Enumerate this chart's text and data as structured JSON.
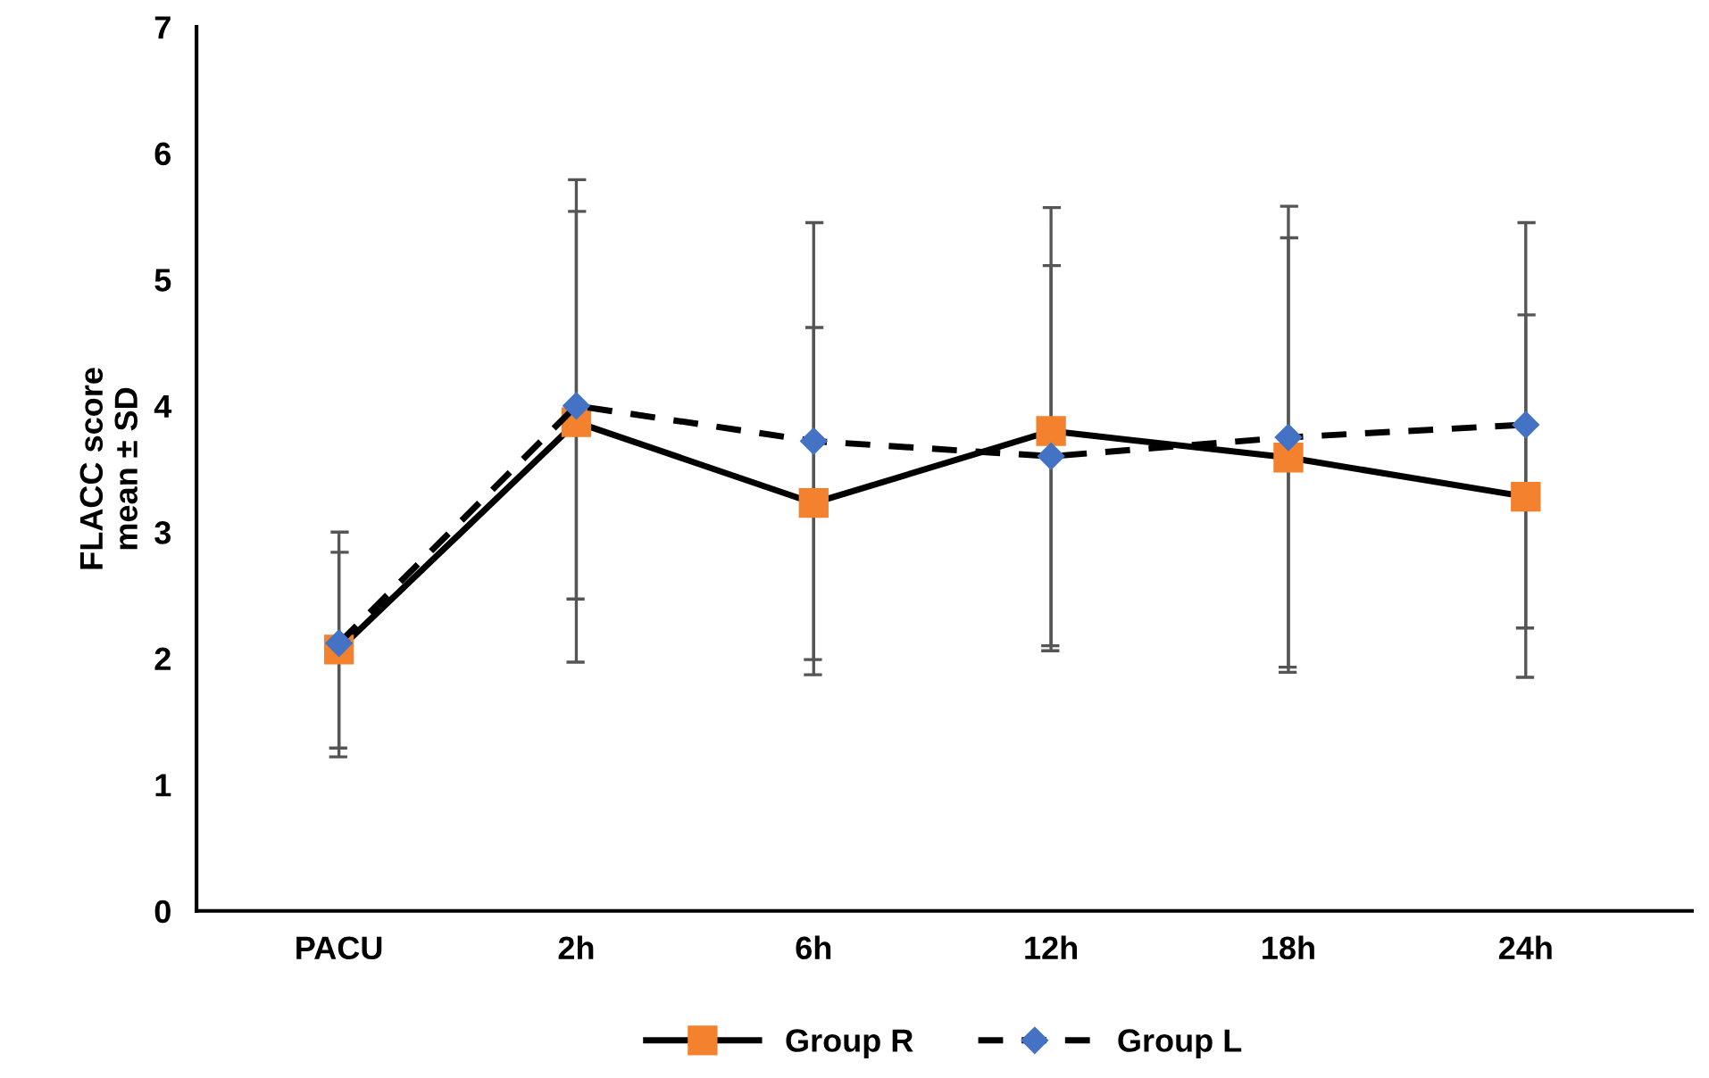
{
  "chart_data": {
    "type": "line",
    "ylabel": "FLACC score\nmean ± SD",
    "categories": [
      "PACU",
      "2h",
      "6h",
      "12h",
      "18h",
      "24h"
    ],
    "series": [
      {
        "name": "Group R",
        "color": "#f4812e",
        "marker": "square",
        "line_style": "solid",
        "values": [
          2.07,
          3.87,
          3.23,
          3.8,
          3.59,
          3.28
        ],
        "errors": [
          [
            1.29,
            2.84
          ],
          [
            1.97,
            5.79
          ],
          [
            1.87,
            4.62
          ],
          [
            2.06,
            5.57
          ],
          [
            1.89,
            5.33
          ],
          [
            1.85,
            4.72
          ]
        ]
      },
      {
        "name": "Group L",
        "color": "#4472c4",
        "marker": "diamond",
        "line_style": "dashed",
        "values": [
          2.12,
          4.0,
          3.72,
          3.6,
          3.75,
          3.85
        ],
        "errors": [
          [
            1.22,
            3.0
          ],
          [
            2.47,
            5.54
          ],
          [
            1.99,
            5.45
          ],
          [
            2.1,
            5.11
          ],
          [
            1.93,
            5.58
          ],
          [
            2.24,
            5.45
          ]
        ]
      }
    ],
    "ylim": [
      0,
      7
    ],
    "yticks": [
      0,
      1,
      2,
      3,
      4,
      5,
      6,
      7
    ],
    "legend": "bottom"
  }
}
